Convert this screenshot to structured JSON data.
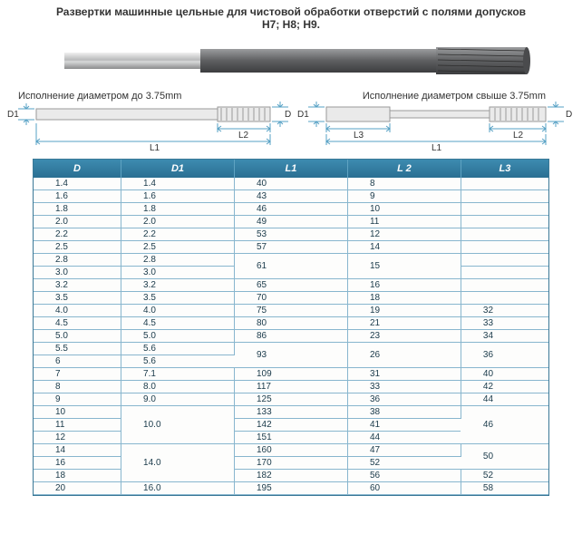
{
  "header": {
    "line1": "Развертки машинные цельные для чистовой обработки отверстий с полями допусков",
    "line2": "Н7; Н8; Н9."
  },
  "diagram": {
    "label_left": "Исполнение диаметром до 3.75mm",
    "label_right": "Исполнение диаметром свыше 3.75mm",
    "dim_D": "D",
    "dim_D1": "D1",
    "dim_L1": "L1",
    "dim_L2": "L2",
    "dim_L3": "L3",
    "colors": {
      "tool_body": "#6d6e70",
      "tool_shank": "#c8c9ca",
      "dim_line": "#55a0c4",
      "schematic_fill": "#e8e8e8"
    }
  },
  "table": {
    "columns": [
      "D",
      "D1",
      "L1",
      "L 2",
      "L3"
    ],
    "col_widths": [
      "17%",
      "22%",
      "22%",
      "22%",
      "17%"
    ],
    "header_bg": "#3183a8",
    "header_color": "#ffffff",
    "border_color": "#88b6ce",
    "rows": [
      {
        "D": "1.4",
        "D1": "1.4",
        "L1": "40",
        "L2": "8",
        "L3": ""
      },
      {
        "D": "1.6",
        "D1": "1.6",
        "L1": "43",
        "L2": "9",
        "L3": ""
      },
      {
        "D": "1.8",
        "D1": "1.8",
        "L1": "46",
        "L2": "10",
        "L3": ""
      },
      {
        "D": "2.0",
        "D1": "2.0",
        "L1": "49",
        "L2": "11",
        "L3": ""
      },
      {
        "D": "2.2",
        "D1": "2.2",
        "L1": "53",
        "L2": "12",
        "L3": ""
      },
      {
        "D": "2.5",
        "D1": "2.5",
        "L1": "57",
        "L2": "14",
        "L3": ""
      },
      {
        "D": "2.8",
        "D1": "2.8",
        "L1": "61",
        "L1_rs": 2,
        "L2": "15",
        "L2_rs": 2,
        "L3": ""
      },
      {
        "D": "3.0",
        "D1": "3.0",
        "L3": ""
      },
      {
        "D": "3.2",
        "D1": "3.2",
        "L1": "65",
        "L2": "16",
        "L3": ""
      },
      {
        "D": "3.5",
        "D1": "3.5",
        "L1": "70",
        "L2": "18",
        "L3": ""
      },
      {
        "D": "4.0",
        "D1": "4.0",
        "L1": "75",
        "L2": "19",
        "L3": "32"
      },
      {
        "D": "4.5",
        "D1": "4.5",
        "L1": "80",
        "L2": "21",
        "L3": "33"
      },
      {
        "D": "5.0",
        "D1": "5.0",
        "L1": "86",
        "L2": "23",
        "L3": "34"
      },
      {
        "D": "5.5",
        "D1": "5.6",
        "L1": "93",
        "L1_rs": 2,
        "L2": "26",
        "L2_rs": 2,
        "L3": "36",
        "L3_rs": 2
      },
      {
        "D": "6",
        "D1": "5.6"
      },
      {
        "D": "7",
        "D1": "7.1",
        "L1": "109",
        "L2": "31",
        "L3": "40"
      },
      {
        "D": "8",
        "D1": "8.0",
        "L1": "117",
        "L2": "33",
        "L3": "42"
      },
      {
        "D": "9",
        "D1": "9.0",
        "L1": "125",
        "L2": "36",
        "L3": "44"
      },
      {
        "D": "10",
        "D1": "10.0",
        "D1_rs": 3,
        "L1": "133",
        "L2": "38",
        "L3": "46",
        "L3_rs": 3
      },
      {
        "D": "11",
        "L1": "142",
        "L2": "41"
      },
      {
        "D": "12",
        "L1": "151",
        "L2": "44"
      },
      {
        "D": "14",
        "D1": "14.0",
        "D1_rs": 3,
        "L1": "160",
        "L2": "47",
        "L3": "50",
        "L3_rs": 2
      },
      {
        "D": "16",
        "L1": "170",
        "L2": "52"
      },
      {
        "D": "18",
        "L1": "182",
        "L2": "56",
        "L3": "52"
      },
      {
        "D": "20",
        "D1": "16.0",
        "L1": "195",
        "L2": "60",
        "L3": "58"
      }
    ]
  }
}
